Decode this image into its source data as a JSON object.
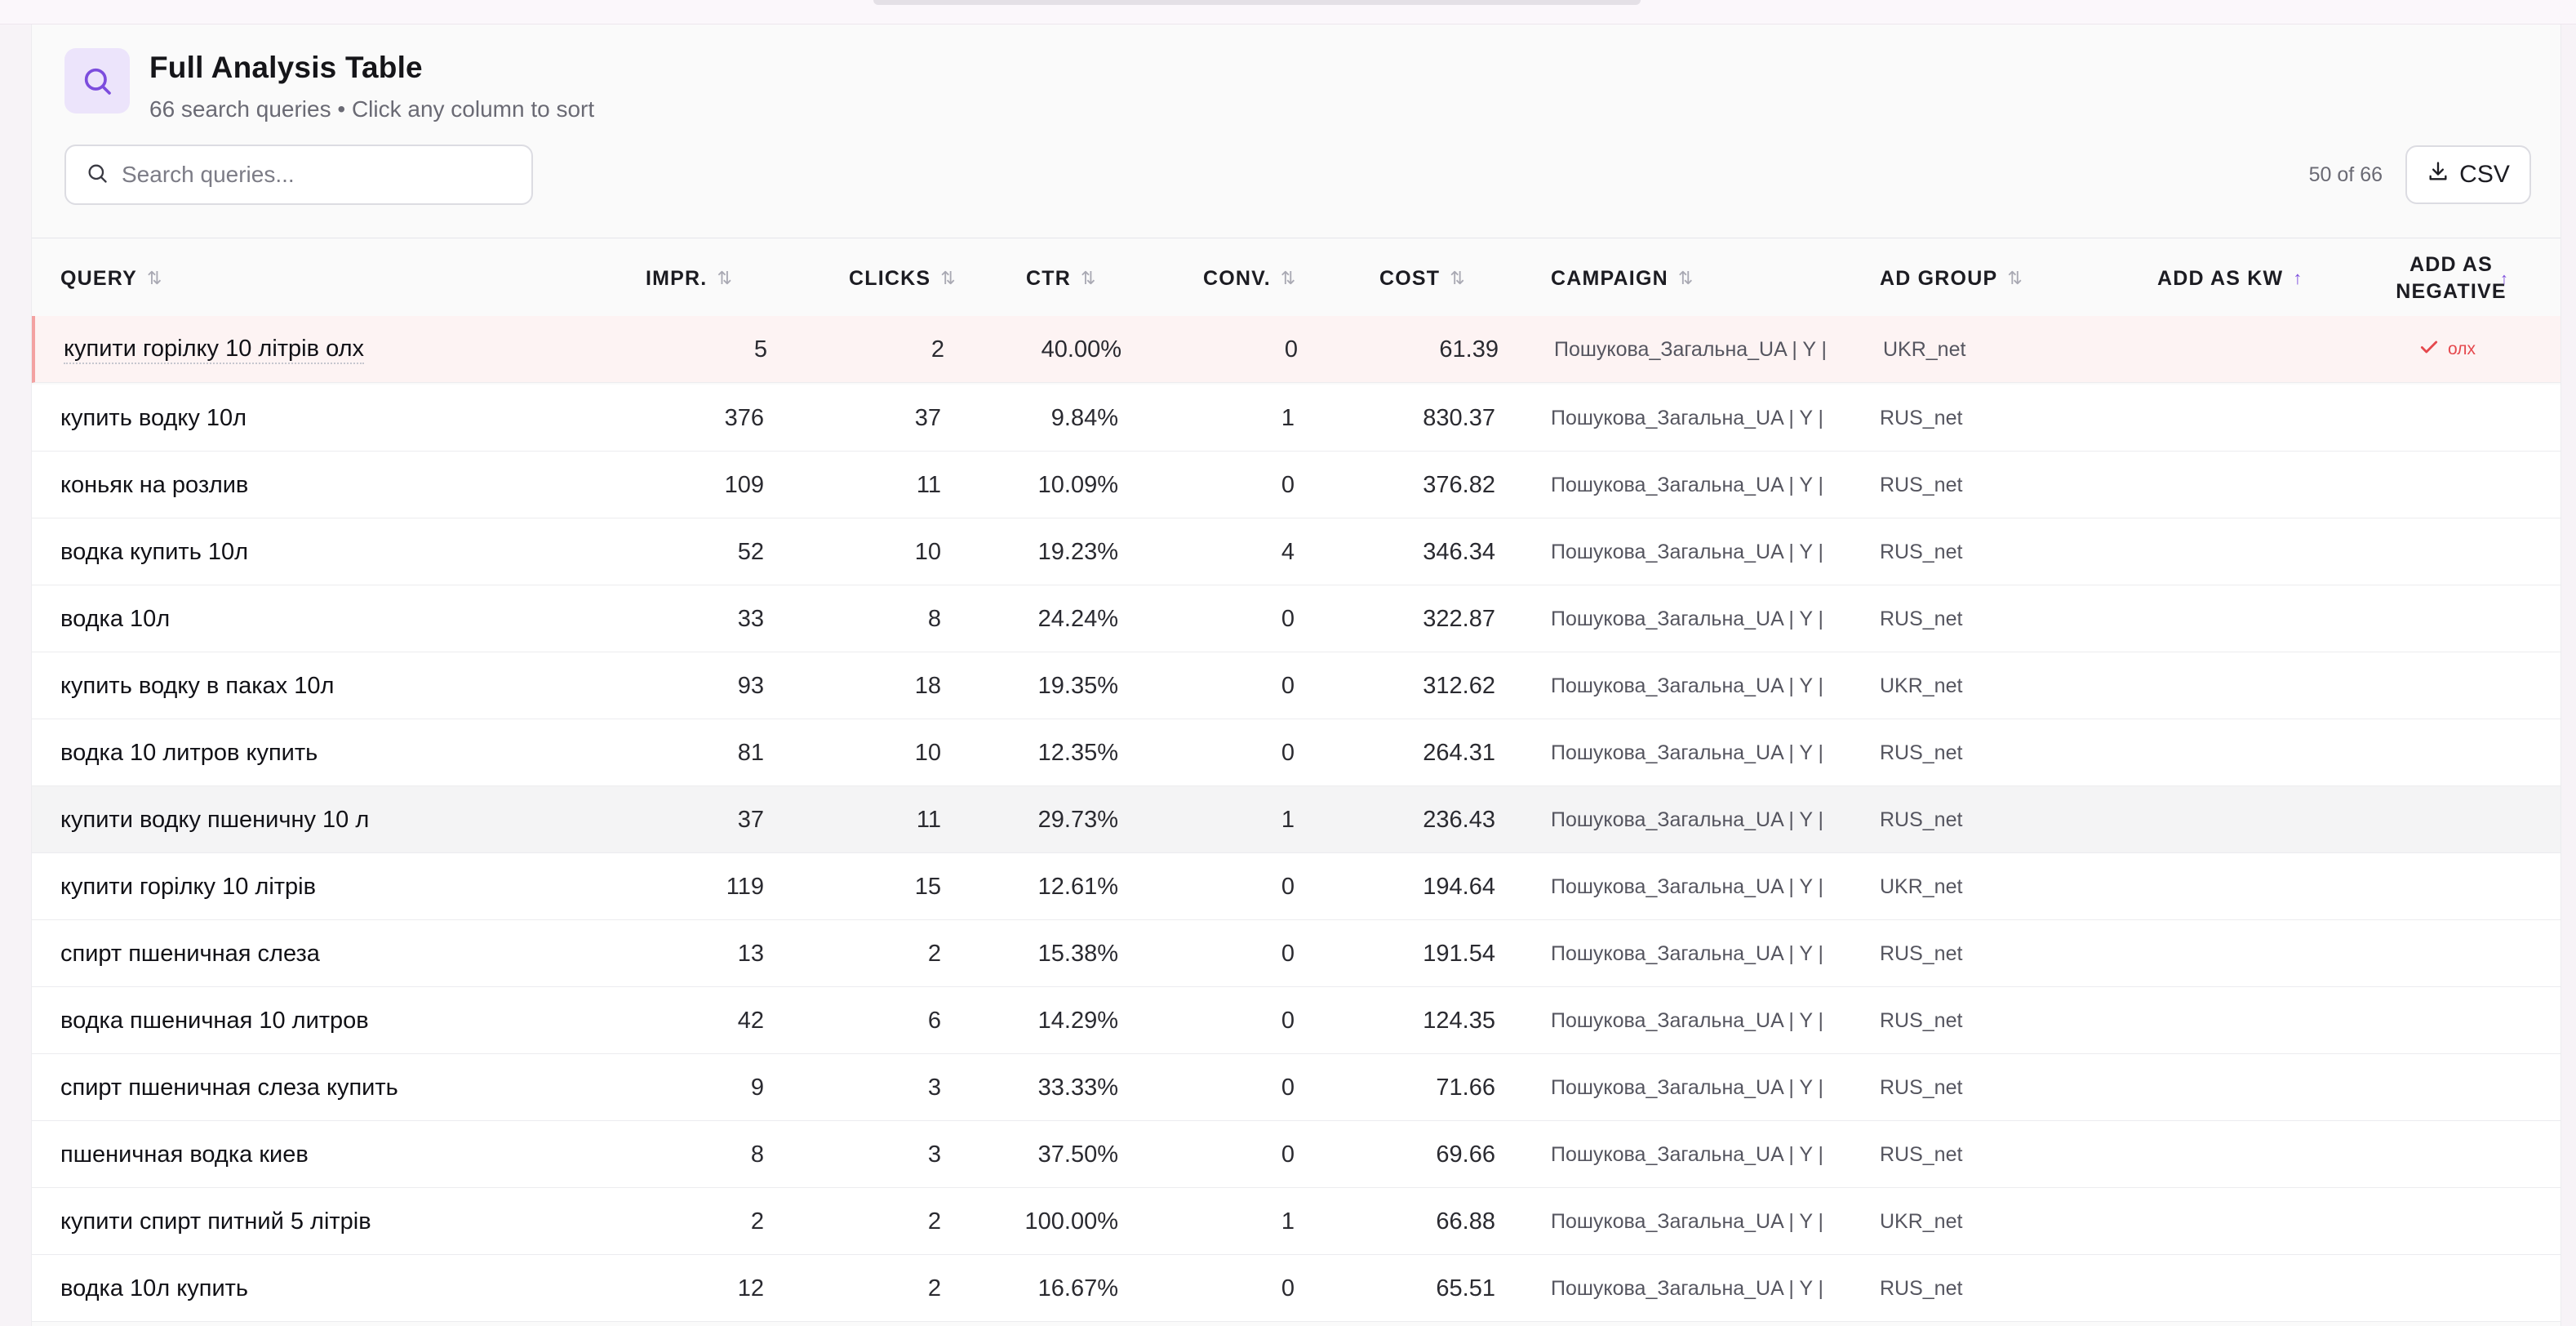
{
  "header": {
    "icon": "search-icon",
    "title": "Full Analysis Table",
    "subtitle": "66 search queries • Click any column to sort"
  },
  "search": {
    "placeholder": "Search queries...",
    "value": ""
  },
  "pagination": {
    "count_label": "50 of 66"
  },
  "toolbar": {
    "csv_label": "CSV",
    "csv_icon": "download-icon"
  },
  "table": {
    "columns": [
      {
        "key": "query",
        "label": "QUERY",
        "sort_icon": "sort-arrows-icon"
      },
      {
        "key": "impr",
        "label": "IMPR.",
        "sort_icon": "sort-arrows-icon"
      },
      {
        "key": "clicks",
        "label": "CLICKS",
        "sort_icon": "sort-arrows-icon"
      },
      {
        "key": "ctr",
        "label": "CTR",
        "sort_icon": "sort-arrows-icon"
      },
      {
        "key": "conv",
        "label": "CONV.",
        "sort_icon": "sort-arrows-icon"
      },
      {
        "key": "cost",
        "label": "COST",
        "sort_icon": "sort-arrows-icon"
      },
      {
        "key": "campaign",
        "label": "CAMPAIGN",
        "sort_icon": "sort-arrows-icon"
      },
      {
        "key": "adgroup",
        "label": "AD GROUP",
        "sort_icon": "sort-arrows-icon"
      },
      {
        "key": "add_kw",
        "label": "ADD AS KW",
        "sort_icon": "sort-up-icon"
      },
      {
        "key": "add_negative",
        "label_line1": "ADD AS",
        "label_line2": "NEGATIVE",
        "sort_icon": "sort-up-icon"
      }
    ],
    "rows": [
      {
        "query": "купити горілку 10 літрів олх",
        "impr": "5",
        "clicks": "2",
        "ctr": "40.00%",
        "conv": "0",
        "cost": "61.39",
        "campaign": "Пошукова_Загальна_UA | Y |",
        "adgroup": "UKR_net",
        "negative": "олх",
        "negative_icon": "check-icon",
        "flagged": true
      },
      {
        "query": "купить водку 10л",
        "impr": "376",
        "clicks": "37",
        "ctr": "9.84%",
        "conv": "1",
        "cost": "830.37",
        "campaign": "Пошукова_Загальна_UA | Y |",
        "adgroup": "RUS_net"
      },
      {
        "query": "коньяк на розлив",
        "impr": "109",
        "clicks": "11",
        "ctr": "10.09%",
        "conv": "0",
        "cost": "376.82",
        "campaign": "Пошукова_Загальна_UA | Y |",
        "adgroup": "RUS_net"
      },
      {
        "query": "водка купить 10л",
        "impr": "52",
        "clicks": "10",
        "ctr": "19.23%",
        "conv": "4",
        "cost": "346.34",
        "campaign": "Пошукова_Загальна_UA | Y |",
        "adgroup": "RUS_net"
      },
      {
        "query": "водка 10л",
        "impr": "33",
        "clicks": "8",
        "ctr": "24.24%",
        "conv": "0",
        "cost": "322.87",
        "campaign": "Пошукова_Загальна_UA | Y |",
        "adgroup": "RUS_net"
      },
      {
        "query": "купить водку в паках 10л",
        "impr": "93",
        "clicks": "18",
        "ctr": "19.35%",
        "conv": "0",
        "cost": "312.62",
        "campaign": "Пошукова_Загальна_UA | Y |",
        "adgroup": "UKR_net"
      },
      {
        "query": "водка 10 литров купить",
        "impr": "81",
        "clicks": "10",
        "ctr": "12.35%",
        "conv": "0",
        "cost": "264.31",
        "campaign": "Пошукова_Загальна_UA | Y |",
        "adgroup": "RUS_net"
      },
      {
        "query": "купити водку пшеничну 10 л",
        "impr": "37",
        "clicks": "11",
        "ctr": "29.73%",
        "conv": "1",
        "cost": "236.43",
        "campaign": "Пошукова_Загальна_UA | Y |",
        "adgroup": "RUS_net",
        "hovered": true
      },
      {
        "query": "купити горілку 10 літрів",
        "impr": "119",
        "clicks": "15",
        "ctr": "12.61%",
        "conv": "0",
        "cost": "194.64",
        "campaign": "Пошукова_Загальна_UA | Y |",
        "adgroup": "UKR_net"
      },
      {
        "query": "спирт пшеничная слеза",
        "impr": "13",
        "clicks": "2",
        "ctr": "15.38%",
        "conv": "0",
        "cost": "191.54",
        "campaign": "Пошукова_Загальна_UA | Y |",
        "adgroup": "RUS_net"
      },
      {
        "query": "водка пшеничная 10 литров",
        "impr": "42",
        "clicks": "6",
        "ctr": "14.29%",
        "conv": "0",
        "cost": "124.35",
        "campaign": "Пошукова_Загальна_UA | Y |",
        "adgroup": "RUS_net"
      },
      {
        "query": "спирт пшеничная слеза купить",
        "impr": "9",
        "clicks": "3",
        "ctr": "33.33%",
        "conv": "0",
        "cost": "71.66",
        "campaign": "Пошукова_Загальна_UA | Y |",
        "adgroup": "RUS_net"
      },
      {
        "query": "пшеничная водка киев",
        "impr": "8",
        "clicks": "3",
        "ctr": "37.50%",
        "conv": "0",
        "cost": "69.66",
        "campaign": "Пошукова_Загальна_UA | Y |",
        "adgroup": "RUS_net"
      },
      {
        "query": "купити спирт питний 5 літрів",
        "impr": "2",
        "clicks": "2",
        "ctr": "100.00%",
        "conv": "1",
        "cost": "66.88",
        "campaign": "Пошукова_Загальна_UA | Y |",
        "adgroup": "UKR_net"
      },
      {
        "query": "водка 10л купить",
        "impr": "12",
        "clicks": "2",
        "ctr": "16.67%",
        "conv": "0",
        "cost": "65.51",
        "campaign": "Пошукова_Загальна_UA | Y |",
        "adgroup": "RUS_net"
      }
    ]
  },
  "colors": {
    "accent": "#7c4ddd",
    "icon_bg": "#ece4fb",
    "flag_bg": "#fdf3f3",
    "flag_border": "#f3a1a1",
    "negative_text": "#e5484d"
  }
}
